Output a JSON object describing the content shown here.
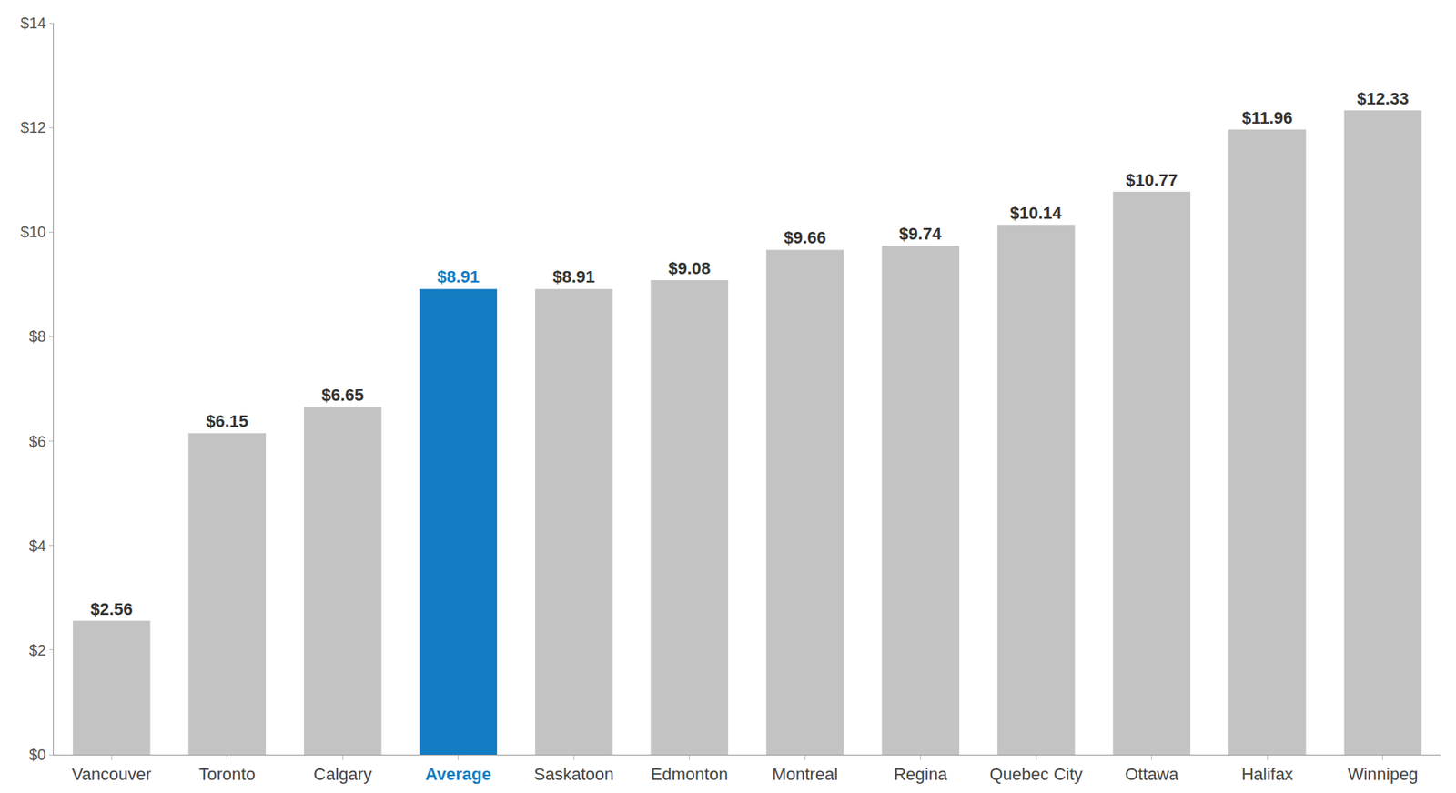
{
  "chart_data": {
    "type": "bar",
    "categories": [
      "Vancouver",
      "Toronto",
      "Calgary",
      "Average",
      "Saskatoon",
      "Edmonton",
      "Montreal",
      "Regina",
      "Quebec City",
      "Ottawa",
      "Halifax",
      "Winnipeg"
    ],
    "values": [
      2.56,
      6.15,
      6.65,
      8.91,
      8.91,
      9.08,
      9.66,
      9.74,
      10.14,
      10.77,
      11.96,
      12.33
    ],
    "value_labels": [
      "$2.56",
      "$6.15",
      "$6.65",
      "$8.91",
      "$8.91",
      "$9.08",
      "$9.66",
      "$9.74",
      "$10.14",
      "$10.77",
      "$11.96",
      "$12.33"
    ],
    "colors": [
      "#c3c3c3",
      "#c3c3c3",
      "#c3c3c3",
      "#137cc2",
      "#c3c3c3",
      "#c3c3c3",
      "#c3c3c3",
      "#c3c3c3",
      "#c3c3c3",
      "#c3c3c3",
      "#c3c3c3",
      "#c3c3c3"
    ],
    "ylim": [
      0,
      14
    ],
    "yticks": [
      {
        "value": 0,
        "label": "$0"
      },
      {
        "value": 2,
        "label": "$2"
      },
      {
        "value": 4,
        "label": "$4"
      },
      {
        "value": 6,
        "label": "$6"
      },
      {
        "value": 8,
        "label": "$8"
      },
      {
        "value": 10,
        "label": "$10"
      },
      {
        "value": 12,
        "label": "$12"
      },
      {
        "value": 14,
        "label": "$14"
      }
    ],
    "grid": false,
    "data_labels": true
  }
}
